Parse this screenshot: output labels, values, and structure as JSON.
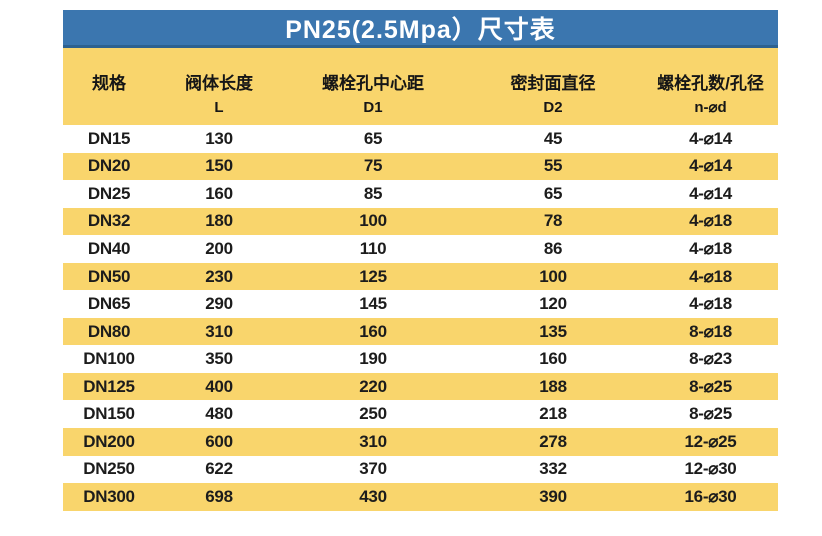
{
  "title": "PN25(2.5Mpa）尺寸表",
  "colors": {
    "title_bar_blue": "#3b76af",
    "title_bar_border": "#2d618f",
    "band_yellow": "#f9d56c",
    "row_white": "#ffffff",
    "title_text": "#ffffff",
    "body_text": "#1c1c1c"
  },
  "table": {
    "headers": [
      {
        "label": "规格",
        "sub": ""
      },
      {
        "label": "阀体长度",
        "sub": "L"
      },
      {
        "label": "螺栓孔中心距",
        "sub": "D1"
      },
      {
        "label": "密封面直径",
        "sub": "D2"
      },
      {
        "label": "螺栓孔数/孔径",
        "sub": "n-⌀d"
      }
    ],
    "rows": [
      [
        "DN15",
        "130",
        "65",
        "45",
        "4-⌀14"
      ],
      [
        "DN20",
        "150",
        "75",
        "55",
        "4-⌀14"
      ],
      [
        "DN25",
        "160",
        "85",
        "65",
        "4-⌀14"
      ],
      [
        "DN32",
        "180",
        "100",
        "78",
        "4-⌀18"
      ],
      [
        "DN40",
        "200",
        "110",
        "86",
        "4-⌀18"
      ],
      [
        "DN50",
        "230",
        "125",
        "100",
        "4-⌀18"
      ],
      [
        "DN65",
        "290",
        "145",
        "120",
        "4-⌀18"
      ],
      [
        "DN80",
        "310",
        "160",
        "135",
        "8-⌀18"
      ],
      [
        "DN100",
        "350",
        "190",
        "160",
        "8-⌀23"
      ],
      [
        "DN125",
        "400",
        "220",
        "188",
        "8-⌀25"
      ],
      [
        "DN150",
        "480",
        "250",
        "218",
        "8-⌀25"
      ],
      [
        "DN200",
        "600",
        "310",
        "278",
        "12-⌀25"
      ],
      [
        "DN250",
        "622",
        "370",
        "332",
        "12-⌀30"
      ],
      [
        "DN300",
        "698",
        "430",
        "390",
        "16-⌀30"
      ]
    ]
  },
  "chart_data": {
    "type": "table",
    "title": "PN25(2.5Mpa）尺寸表",
    "columns": [
      "规格",
      "阀体长度 L",
      "螺栓孔中心距 D1",
      "密封面直径 D2",
      "螺栓孔数/孔径 n-⌀d"
    ],
    "rows": [
      [
        "DN15",
        130,
        65,
        45,
        "4-⌀14"
      ],
      [
        "DN20",
        150,
        75,
        55,
        "4-⌀14"
      ],
      [
        "DN25",
        160,
        85,
        65,
        "4-⌀14"
      ],
      [
        "DN32",
        180,
        100,
        78,
        "4-⌀18"
      ],
      [
        "DN40",
        200,
        110,
        86,
        "4-⌀18"
      ],
      [
        "DN50",
        230,
        125,
        100,
        "4-⌀18"
      ],
      [
        "DN65",
        290,
        145,
        120,
        "4-⌀18"
      ],
      [
        "DN80",
        310,
        160,
        135,
        "8-⌀18"
      ],
      [
        "DN100",
        350,
        190,
        160,
        "8-⌀23"
      ],
      [
        "DN125",
        400,
        220,
        188,
        "8-⌀25"
      ],
      [
        "DN150",
        480,
        250,
        218,
        "8-⌀25"
      ],
      [
        "DN200",
        600,
        310,
        278,
        "12-⌀25"
      ],
      [
        "DN250",
        622,
        370,
        332,
        "12-⌀30"
      ],
      [
        "DN300",
        698,
        430,
        390,
        "16-⌀30"
      ]
    ],
    "layout": {
      "row_striping": "alternating white / yellow starting white",
      "header_bg": "yellow",
      "title_bg": "blue"
    }
  }
}
